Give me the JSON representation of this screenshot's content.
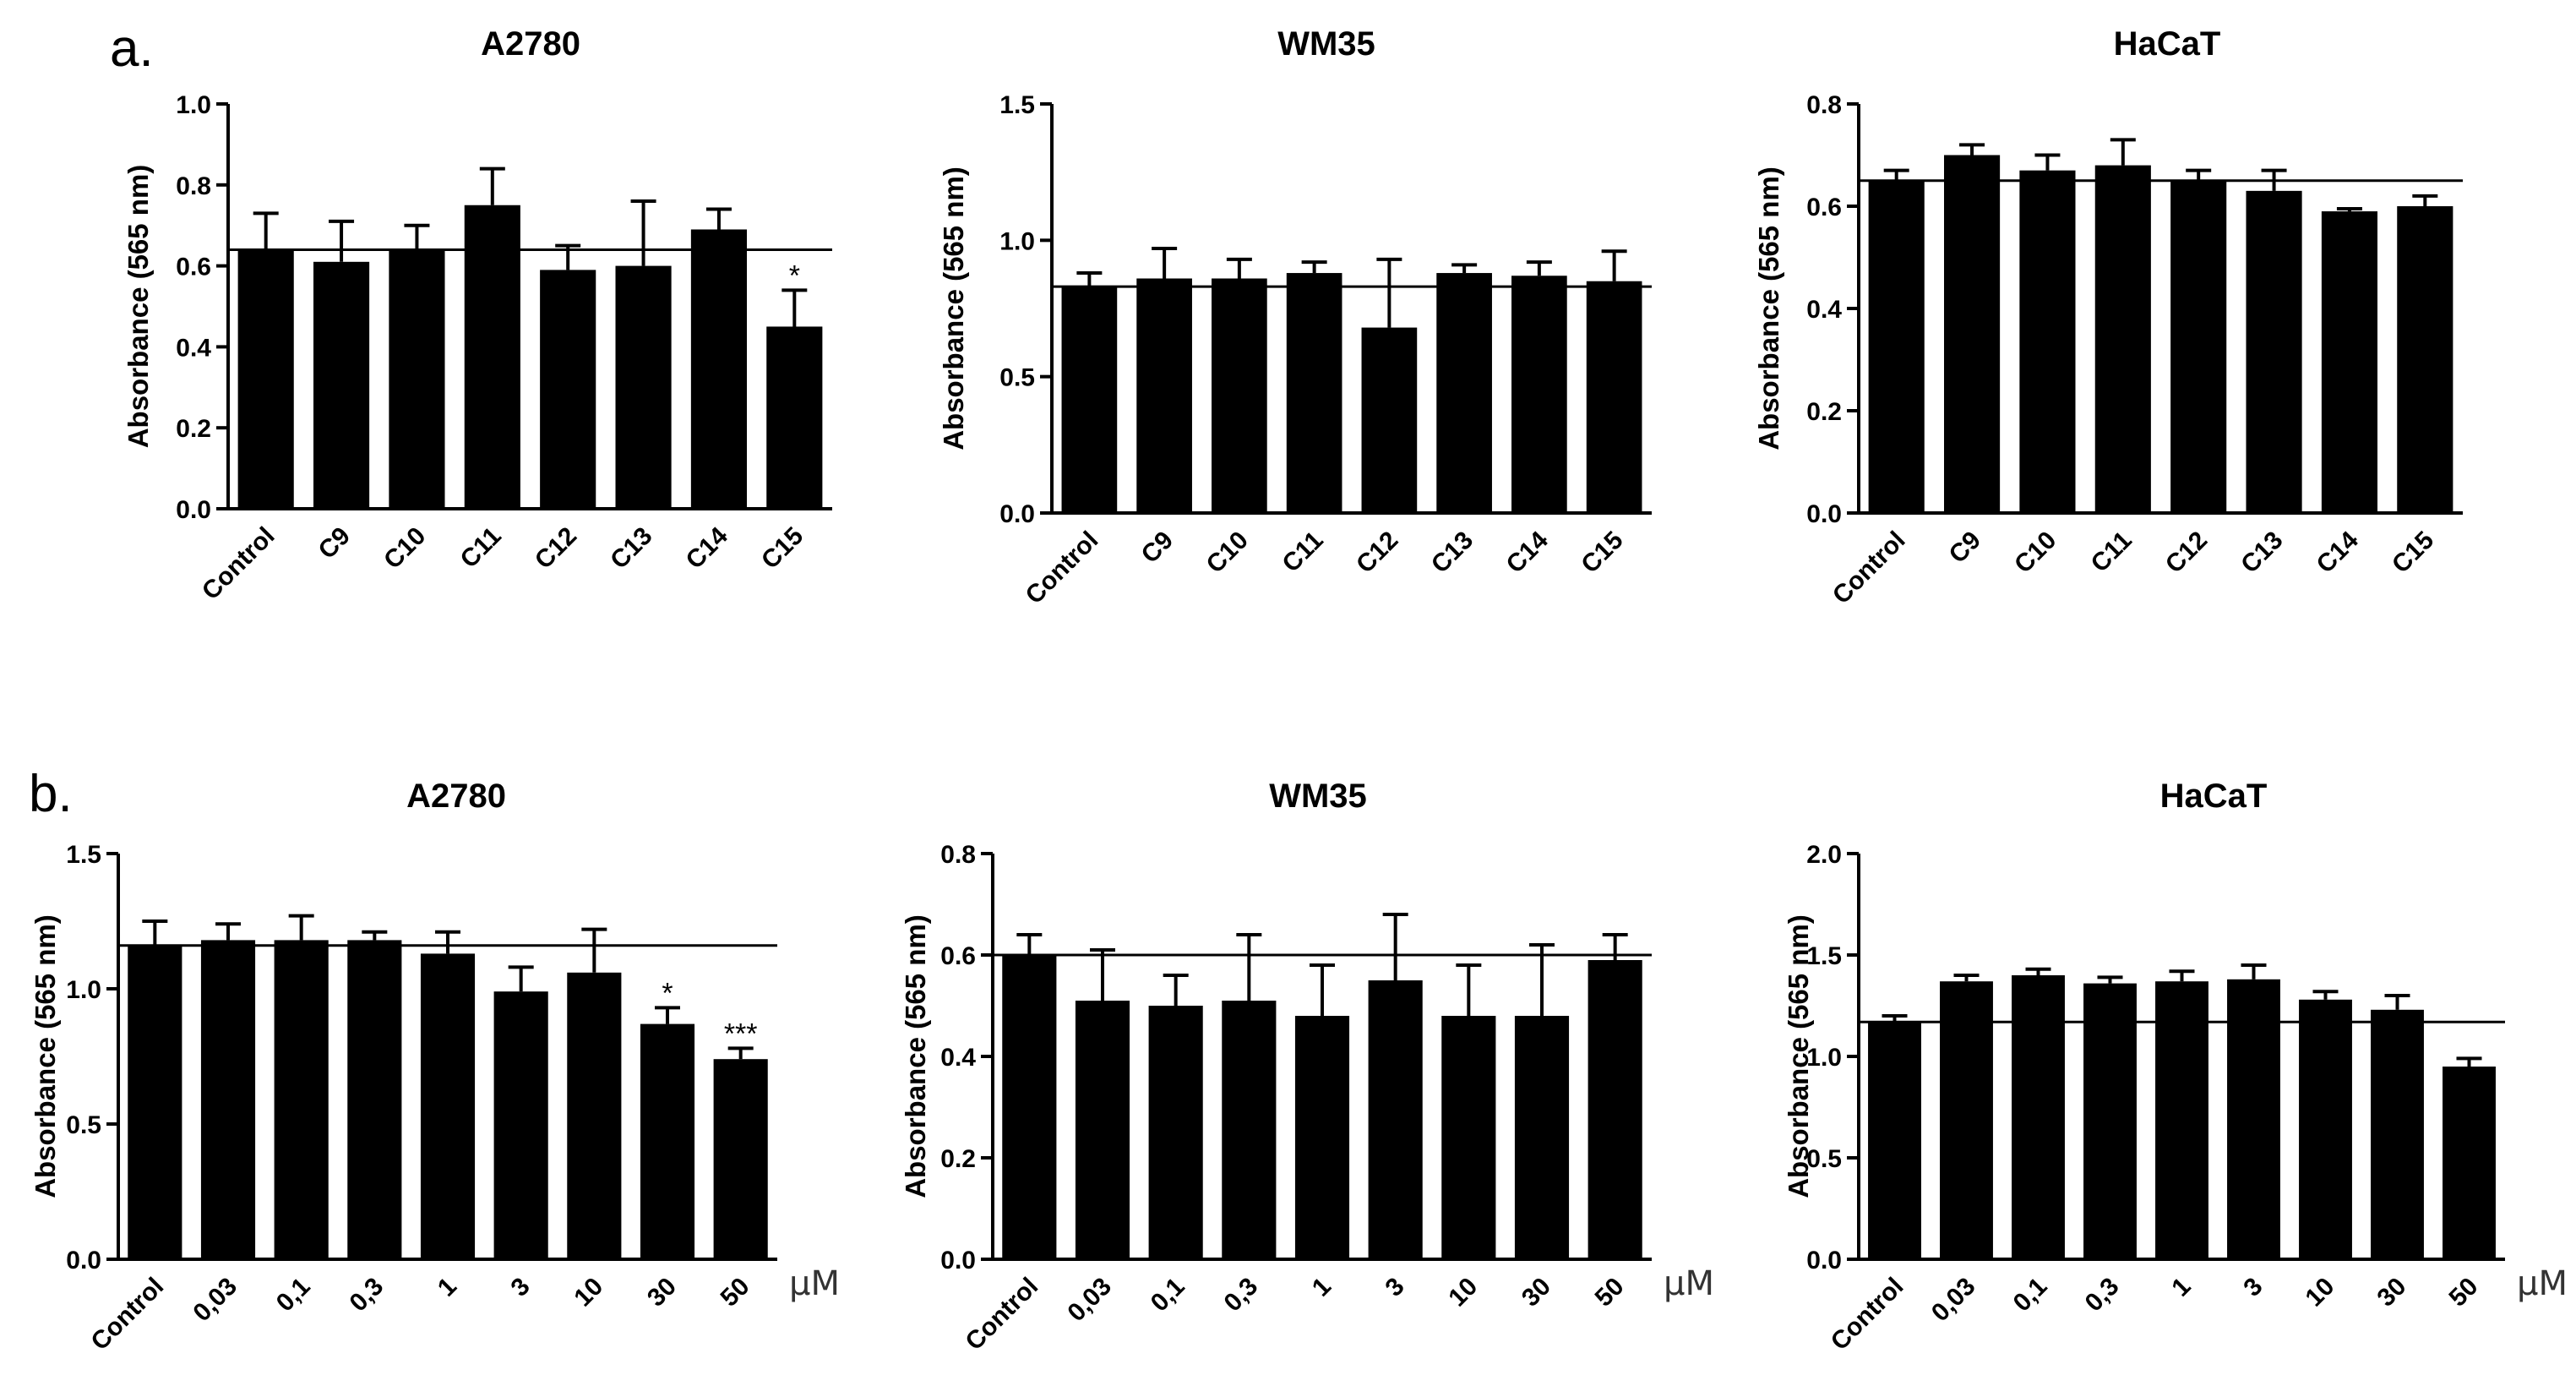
{
  "panel_letters": [
    "a.",
    "b."
  ],
  "unit_label": "μM",
  "chart_data": [
    {
      "type": "bar",
      "panel": "a",
      "title": "A2780",
      "ylabel": "Absorbance (565 nm)",
      "ylim": [
        0,
        1.0
      ],
      "yticks": [
        "0.0",
        "0.2",
        "0.4",
        "0.6",
        "0.8",
        "1.0"
      ],
      "categories": [
        "Control",
        "C9",
        "C10",
        "C11",
        "C12",
        "C13",
        "C14",
        "C15"
      ],
      "values": [
        0.64,
        0.61,
        0.64,
        0.75,
        0.59,
        0.6,
        0.69,
        0.45
      ],
      "errors": [
        0.09,
        0.1,
        0.06,
        0.09,
        0.06,
        0.16,
        0.05,
        0.09
      ],
      "reference_line": 0.64,
      "annotations": [
        "",
        "",
        "",
        "",
        "",
        "",
        "",
        "*"
      ]
    },
    {
      "type": "bar",
      "panel": "a",
      "title": "WM35",
      "ylabel": "Absorbance (565 nm)",
      "ylim": [
        0,
        1.5
      ],
      "yticks": [
        "0.0",
        "0.5",
        "1.0",
        "1.5"
      ],
      "categories": [
        "Control",
        "C9",
        "C10",
        "C11",
        "C12",
        "C13",
        "C14",
        "C15"
      ],
      "values": [
        0.83,
        0.86,
        0.86,
        0.88,
        0.68,
        0.88,
        0.87,
        0.85
      ],
      "errors": [
        0.05,
        0.11,
        0.07,
        0.04,
        0.25,
        0.03,
        0.05,
        0.11
      ],
      "reference_line": 0.83,
      "annotations": [
        "",
        "",
        "",
        "",
        "",
        "",
        "",
        ""
      ]
    },
    {
      "type": "bar",
      "panel": "a",
      "title": "HaCaT",
      "ylabel": "Absorbance (565 nm)",
      "ylim": [
        0,
        0.8
      ],
      "yticks": [
        "0.0",
        "0.2",
        "0.4",
        "0.6",
        "0.8"
      ],
      "categories": [
        "Control",
        "C9",
        "C10",
        "C11",
        "C12",
        "C13",
        "C14",
        "C15"
      ],
      "values": [
        0.65,
        0.7,
        0.67,
        0.68,
        0.65,
        0.63,
        0.59,
        0.6
      ],
      "errors": [
        0.02,
        0.02,
        0.03,
        0.05,
        0.02,
        0.04,
        0.005,
        0.02
      ],
      "reference_line": 0.65,
      "annotations": [
        "",
        "",
        "",
        "",
        "",
        "",
        "",
        ""
      ]
    },
    {
      "type": "bar",
      "panel": "b",
      "title": "A2780",
      "ylabel": "Absorbance (565 nm)",
      "ylim": [
        0,
        1.5
      ],
      "yticks": [
        "0.0",
        "0.5",
        "1.0",
        "1.5"
      ],
      "categories": [
        "Control",
        "0,03",
        "0,1",
        "0,3",
        "1",
        "3",
        "10",
        "30",
        "50"
      ],
      "values": [
        1.16,
        1.18,
        1.18,
        1.18,
        1.13,
        0.99,
        1.06,
        0.87,
        0.74
      ],
      "errors": [
        0.09,
        0.06,
        0.09,
        0.03,
        0.08,
        0.09,
        0.16,
        0.06,
        0.04
      ],
      "reference_line": 1.16,
      "annotations": [
        "",
        "",
        "",
        "",
        "",
        "",
        "",
        "*",
        "***"
      ]
    },
    {
      "type": "bar",
      "panel": "b",
      "title": "WM35",
      "ylabel": "Absorbance (565 nm)",
      "ylim": [
        0,
        0.8
      ],
      "yticks": [
        "0.0",
        "0.2",
        "0.4",
        "0.6",
        "0.8"
      ],
      "categories": [
        "Control",
        "0,03",
        "0,1",
        "0,3",
        "1",
        "3",
        "10",
        "30",
        "50"
      ],
      "values": [
        0.6,
        0.51,
        0.5,
        0.51,
        0.48,
        0.55,
        0.48,
        0.48,
        0.59
      ],
      "errors": [
        0.04,
        0.1,
        0.06,
        0.13,
        0.1,
        0.13,
        0.1,
        0.14,
        0.05
      ],
      "reference_line": 0.6,
      "annotations": [
        "",
        "",
        "",
        "",
        "",
        "",
        "",
        "",
        ""
      ]
    },
    {
      "type": "bar",
      "panel": "b",
      "title": "HaCaT",
      "ylabel": "Absorbance (565 nm)",
      "ylim": [
        0,
        2.0
      ],
      "yticks": [
        "0.0",
        "0.5",
        "1.0",
        "1.5",
        "2.0"
      ],
      "categories": [
        "Control",
        "0,03",
        "0,1",
        "0,3",
        "1",
        "3",
        "10",
        "30",
        "50"
      ],
      "values": [
        1.17,
        1.37,
        1.4,
        1.36,
        1.37,
        1.38,
        1.28,
        1.23,
        0.95
      ],
      "errors": [
        0.03,
        0.03,
        0.03,
        0.03,
        0.05,
        0.07,
        0.04,
        0.07,
        0.04
      ],
      "reference_line": 1.17,
      "annotations": [
        "",
        "",
        "",
        "",
        "",
        "",
        "",
        "",
        ""
      ]
    }
  ]
}
